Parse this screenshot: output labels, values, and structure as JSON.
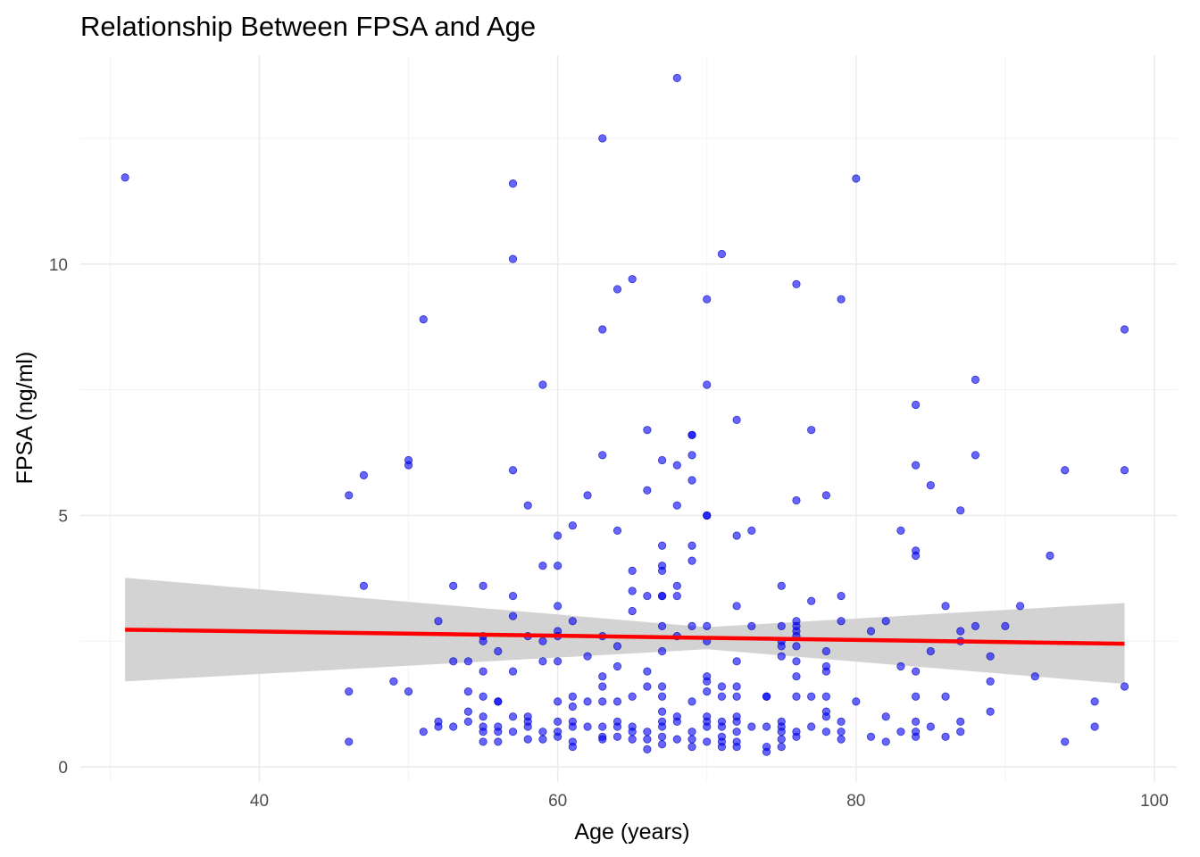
{
  "chart_data": {
    "type": "scatter",
    "title": "Relationship Between FPSA and Age",
    "xlabel": "Age (years)",
    "ylabel": "FPSA (ng/ml)",
    "xlim": [
      28,
      101.5
    ],
    "ylim": [
      -0.3,
      14.15
    ],
    "x_ticks": [
      40,
      60,
      80,
      100
    ],
    "y_ticks": [
      0,
      5,
      10
    ],
    "grid": true,
    "legend": "none",
    "point_color": "#0000ff",
    "trend_color": "#ff0000",
    "band_color": "#d3d3d3",
    "trend": {
      "x": [
        31,
        98
      ],
      "y": [
        2.73,
        2.45
      ]
    },
    "confidence_band": {
      "x": [
        31,
        70,
        98
      ],
      "lower": [
        1.7,
        2.34,
        1.65
      ],
      "upper": [
        3.76,
        2.78,
        3.26
      ]
    },
    "points": [
      [
        31,
        11.72
      ],
      [
        46,
        5.4
      ],
      [
        46,
        1.5
      ],
      [
        46,
        0.5
      ],
      [
        47,
        5.8
      ],
      [
        47,
        3.6
      ],
      [
        49,
        1.7
      ],
      [
        50,
        6.1
      ],
      [
        50,
        6.0
      ],
      [
        50,
        1.5
      ],
      [
        51,
        8.9
      ],
      [
        51,
        0.7
      ],
      [
        52,
        2.9
      ],
      [
        52,
        0.9
      ],
      [
        52,
        0.8
      ],
      [
        53,
        3.6
      ],
      [
        53,
        2.1
      ],
      [
        53,
        0.8
      ],
      [
        54,
        2.1
      ],
      [
        54,
        1.5
      ],
      [
        54,
        1.1
      ],
      [
        54,
        0.9
      ],
      [
        55,
        3.6
      ],
      [
        55,
        2.6
      ],
      [
        55,
        2.5
      ],
      [
        55,
        1.9
      ],
      [
        55,
        1.4
      ],
      [
        55,
        1.0
      ],
      [
        55,
        0.8
      ],
      [
        55,
        0.7
      ],
      [
        55,
        0.5
      ],
      [
        56,
        2.3
      ],
      [
        56,
        1.3
      ],
      [
        56,
        1.3
      ],
      [
        56,
        0.8
      ],
      [
        56,
        0.7
      ],
      [
        56,
        0.5
      ],
      [
        57,
        11.6
      ],
      [
        57,
        10.1
      ],
      [
        57,
        5.9
      ],
      [
        57,
        3.4
      ],
      [
        57,
        3.0
      ],
      [
        57,
        1.9
      ],
      [
        57,
        1.0
      ],
      [
        57,
        0.7
      ],
      [
        58,
        5.2
      ],
      [
        58,
        2.6
      ],
      [
        58,
        1.0
      ],
      [
        58,
        0.9
      ],
      [
        58,
        0.8
      ],
      [
        58,
        0.55
      ],
      [
        59,
        7.6
      ],
      [
        59,
        4.0
      ],
      [
        59,
        2.5
      ],
      [
        59,
        2.1
      ],
      [
        59,
        0.7
      ],
      [
        59,
        0.55
      ],
      [
        60,
        4.6
      ],
      [
        60,
        4.0
      ],
      [
        60,
        3.2
      ],
      [
        60,
        2.7
      ],
      [
        60,
        2.6
      ],
      [
        60,
        2.1
      ],
      [
        60,
        1.3
      ],
      [
        60,
        0.9
      ],
      [
        60,
        0.7
      ],
      [
        60,
        0.6
      ],
      [
        61,
        4.8
      ],
      [
        61,
        2.9
      ],
      [
        61,
        1.4
      ],
      [
        61,
        1.2
      ],
      [
        61,
        0.9
      ],
      [
        61,
        0.8
      ],
      [
        61,
        0.5
      ],
      [
        61,
        0.4
      ],
      [
        62,
        5.4
      ],
      [
        62,
        2.2
      ],
      [
        62,
        1.3
      ],
      [
        62,
        0.8
      ],
      [
        63,
        12.5
      ],
      [
        63,
        8.7
      ],
      [
        63,
        6.2
      ],
      [
        63,
        2.6
      ],
      [
        63,
        1.8
      ],
      [
        63,
        1.6
      ],
      [
        63,
        1.3
      ],
      [
        63,
        0.8
      ],
      [
        63,
        0.6
      ],
      [
        63,
        0.55
      ],
      [
        64,
        9.5
      ],
      [
        64,
        4.7
      ],
      [
        64,
        2.4
      ],
      [
        64,
        2.0
      ],
      [
        64,
        1.3
      ],
      [
        64,
        0.9
      ],
      [
        64,
        0.8
      ],
      [
        64,
        0.6
      ],
      [
        65,
        9.7
      ],
      [
        65,
        3.9
      ],
      [
        65,
        3.5
      ],
      [
        65,
        3.1
      ],
      [
        65,
        1.4
      ],
      [
        65,
        0.8
      ],
      [
        65,
        0.7
      ],
      [
        65,
        0.55
      ],
      [
        66,
        6.7
      ],
      [
        66,
        5.5
      ],
      [
        66,
        3.4
      ],
      [
        66,
        1.9
      ],
      [
        66,
        1.6
      ],
      [
        66,
        0.7
      ],
      [
        66,
        0.55
      ],
      [
        66,
        0.35
      ],
      [
        67,
        6.1
      ],
      [
        67,
        4.4
      ],
      [
        67,
        4.0
      ],
      [
        67,
        3.9
      ],
      [
        67,
        3.4
      ],
      [
        67,
        3.4
      ],
      [
        67,
        2.8
      ],
      [
        67,
        2.3
      ],
      [
        67,
        1.6
      ],
      [
        67,
        1.4
      ],
      [
        67,
        1.1
      ],
      [
        67,
        0.9
      ],
      [
        67,
        0.8
      ],
      [
        67,
        0.6
      ],
      [
        67,
        0.45
      ],
      [
        68,
        13.7
      ],
      [
        68,
        6.0
      ],
      [
        68,
        5.2
      ],
      [
        68,
        3.6
      ],
      [
        68,
        3.4
      ],
      [
        68,
        2.6
      ],
      [
        68,
        1.0
      ],
      [
        68,
        0.9
      ],
      [
        68,
        0.55
      ],
      [
        69,
        6.6
      ],
      [
        69,
        6.6
      ],
      [
        69,
        6.2
      ],
      [
        69,
        5.7
      ],
      [
        69,
        4.4
      ],
      [
        69,
        4.1
      ],
      [
        69,
        2.8
      ],
      [
        69,
        1.3
      ],
      [
        69,
        0.7
      ],
      [
        69,
        0.55
      ],
      [
        69,
        0.4
      ],
      [
        70,
        9.3
      ],
      [
        70,
        7.6
      ],
      [
        70,
        5.0
      ],
      [
        70,
        5.0
      ],
      [
        70,
        2.8
      ],
      [
        70,
        2.5
      ],
      [
        70,
        1.8
      ],
      [
        70,
        1.7
      ],
      [
        70,
        1.5
      ],
      [
        70,
        1.0
      ],
      [
        70,
        0.9
      ],
      [
        70,
        0.8
      ],
      [
        70,
        0.5
      ],
      [
        71,
        10.2
      ],
      [
        71,
        1.6
      ],
      [
        71,
        1.4
      ],
      [
        71,
        0.9
      ],
      [
        71,
        0.8
      ],
      [
        71,
        0.6
      ],
      [
        71,
        0.5
      ],
      [
        71,
        0.4
      ],
      [
        72,
        6.9
      ],
      [
        72,
        4.6
      ],
      [
        72,
        3.2
      ],
      [
        72,
        2.1
      ],
      [
        72,
        1.6
      ],
      [
        72,
        1.4
      ],
      [
        72,
        1.0
      ],
      [
        72,
        0.9
      ],
      [
        72,
        0.7
      ],
      [
        72,
        0.5
      ],
      [
        72,
        0.4
      ],
      [
        73,
        4.7
      ],
      [
        73,
        2.8
      ],
      [
        73,
        0.8
      ],
      [
        74,
        1.4
      ],
      [
        74,
        1.4
      ],
      [
        74,
        0.8
      ],
      [
        74,
        0.4
      ],
      [
        74,
        0.3
      ],
      [
        75,
        3.6
      ],
      [
        75,
        2.8
      ],
      [
        75,
        2.5
      ],
      [
        75,
        2.4
      ],
      [
        75,
        2.2
      ],
      [
        75,
        0.9
      ],
      [
        75,
        0.8
      ],
      [
        75,
        0.7
      ],
      [
        75,
        0.55
      ],
      [
        75,
        0.4
      ],
      [
        76,
        9.6
      ],
      [
        76,
        5.3
      ],
      [
        76,
        2.9
      ],
      [
        76,
        2.8
      ],
      [
        76,
        2.7
      ],
      [
        76,
        2.6
      ],
      [
        76,
        2.4
      ],
      [
        76,
        2.1
      ],
      [
        76,
        1.8
      ],
      [
        76,
        1.4
      ],
      [
        76,
        0.7
      ],
      [
        76,
        0.6
      ],
      [
        77,
        6.7
      ],
      [
        77,
        3.3
      ],
      [
        77,
        1.4
      ],
      [
        77,
        0.8
      ],
      [
        78,
        5.4
      ],
      [
        78,
        2.3
      ],
      [
        78,
        2.0
      ],
      [
        78,
        1.9
      ],
      [
        78,
        1.4
      ],
      [
        78,
        1.1
      ],
      [
        78,
        1.0
      ],
      [
        78,
        0.7
      ],
      [
        79,
        9.3
      ],
      [
        79,
        3.4
      ],
      [
        79,
        2.9
      ],
      [
        79,
        0.9
      ],
      [
        79,
        0.7
      ],
      [
        79,
        0.55
      ],
      [
        80,
        11.7
      ],
      [
        80,
        1.3
      ],
      [
        81,
        2.7
      ],
      [
        81,
        0.6
      ],
      [
        82,
        2.9
      ],
      [
        82,
        1.0
      ],
      [
        82,
        0.5
      ],
      [
        83,
        4.7
      ],
      [
        83,
        2.0
      ],
      [
        83,
        0.7
      ],
      [
        84,
        7.2
      ],
      [
        84,
        6.0
      ],
      [
        84,
        4.3
      ],
      [
        84,
        4.2
      ],
      [
        84,
        1.9
      ],
      [
        84,
        1.4
      ],
      [
        84,
        0.9
      ],
      [
        84,
        0.7
      ],
      [
        84,
        0.6
      ],
      [
        85,
        5.6
      ],
      [
        85,
        2.3
      ],
      [
        85,
        0.8
      ],
      [
        86,
        3.2
      ],
      [
        86,
        1.4
      ],
      [
        86,
        0.6
      ],
      [
        87,
        5.1
      ],
      [
        87,
        2.7
      ],
      [
        87,
        2.5
      ],
      [
        87,
        0.9
      ],
      [
        87,
        0.7
      ],
      [
        88,
        7.7
      ],
      [
        88,
        6.2
      ],
      [
        88,
        2.8
      ],
      [
        89,
        2.2
      ],
      [
        89,
        1.7
      ],
      [
        89,
        1.1
      ],
      [
        90,
        2.8
      ],
      [
        91,
        3.2
      ],
      [
        92,
        1.8
      ],
      [
        93,
        4.2
      ],
      [
        94,
        5.9
      ],
      [
        94,
        0.5
      ],
      [
        96,
        1.3
      ],
      [
        96,
        0.8
      ],
      [
        98,
        8.7
      ],
      [
        98,
        5.9
      ],
      [
        98,
        1.6
      ]
    ]
  }
}
